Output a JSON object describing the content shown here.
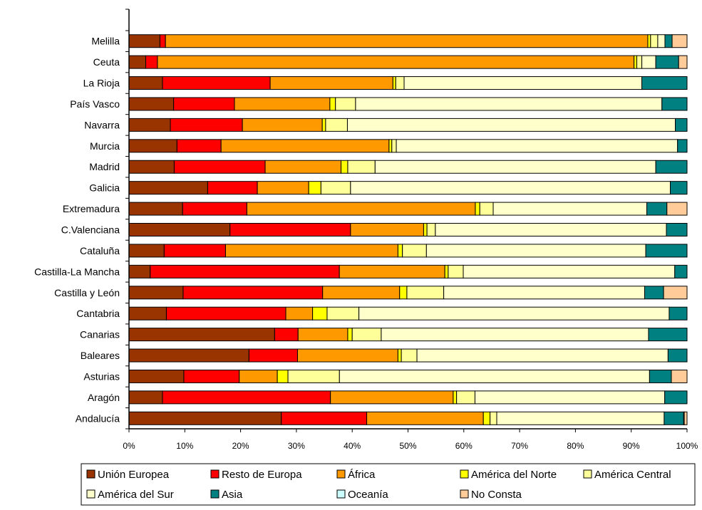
{
  "chart_data": {
    "type": "bar",
    "orientation": "horizontal",
    "stacked": "percent",
    "title": "",
    "xlabel": "",
    "ylabel": "",
    "xlim": [
      0,
      100
    ],
    "grid": false,
    "legend_position": "bottom",
    "x_ticks": [
      "0%",
      "10%",
      "20%",
      "30%",
      "40%",
      "50%",
      "60%",
      "70%",
      "80%",
      "90%",
      "100%"
    ],
    "categories": [
      "Melilla",
      "Ceuta",
      "La Rioja",
      "País Vasco",
      "Navarra",
      "Murcia",
      "Madrid",
      "Galicia",
      "Extremadura",
      "C.Valenciana",
      "Cataluña",
      "Castilla-La Mancha",
      "Castilla y León",
      "Cantabria",
      "Canarias",
      "Baleares",
      "Asturias",
      "Aragón",
      "Andalucía"
    ],
    "series": [
      {
        "name": "Unión Europea",
        "color": "#993300",
        "values": [
          5.6,
          3.0,
          6.0,
          8.0,
          7.4,
          8.6,
          8.1,
          14.1,
          9.6,
          18.1,
          6.3,
          3.8,
          9.7,
          6.7,
          26.1,
          21.5,
          9.8,
          6.0,
          27.3
        ]
      },
      {
        "name": "Resto de Europa",
        "color": "#ff0000",
        "values": [
          1.0,
          2.1,
          19.3,
          10.9,
          12.9,
          7.9,
          16.3,
          8.9,
          11.5,
          21.6,
          11.0,
          33.9,
          25.0,
          21.4,
          4.2,
          8.7,
          9.9,
          30.1,
          15.3
        ]
      },
      {
        "name": "África",
        "color": "#ff9900",
        "values": [
          87.3,
          85.4,
          22.0,
          17.1,
          14.3,
          30.1,
          13.6,
          9.2,
          40.9,
          13.1,
          30.9,
          18.9,
          13.8,
          4.8,
          8.9,
          18.0,
          6.8,
          22.0,
          20.9
        ]
      },
      {
        "name": "América del Norte",
        "color": "#ffff00",
        "values": [
          0.5,
          0.5,
          0.5,
          1.0,
          0.6,
          0.5,
          1.2,
          2.2,
          0.8,
          0.6,
          0.8,
          0.6,
          1.3,
          2.6,
          0.8,
          0.6,
          1.9,
          0.6,
          1.2
        ]
      },
      {
        "name": "América Central",
        "color": "#ffff99",
        "values": [
          1.3,
          0.9,
          1.5,
          3.6,
          3.9,
          0.8,
          4.9,
          5.3,
          2.4,
          1.5,
          4.3,
          2.7,
          6.6,
          5.7,
          5.2,
          2.8,
          9.2,
          3.3,
          1.2
        ]
      },
      {
        "name": "América del Sur",
        "color": "#ffffcc",
        "values": [
          1.3,
          2.5,
          42.6,
          54.9,
          58.7,
          50.4,
          50.3,
          57.3,
          27.5,
          41.4,
          39.3,
          37.9,
          36.0,
          55.6,
          47.9,
          45.0,
          55.4,
          34.0,
          30.0
        ]
      },
      {
        "name": "Asia",
        "color": "#008080",
        "values": [
          1.3,
          4.1,
          8.1,
          4.5,
          2.1,
          1.7,
          5.6,
          3.0,
          3.6,
          3.7,
          7.4,
          2.2,
          3.4,
          3.2,
          6.9,
          3.4,
          3.9,
          4.0,
          3.5
        ]
      },
      {
        "name": "Oceanía",
        "color": "#ccffff",
        "values": [
          0,
          0,
          0,
          0,
          0,
          0,
          0,
          0,
          0,
          0,
          0,
          0,
          0,
          0,
          0,
          0,
          0,
          0,
          0.1
        ]
      },
      {
        "name": "No Consta",
        "color": "#ffcc99",
        "values": [
          2.7,
          1.5,
          0,
          0,
          0,
          0,
          0,
          0,
          3.6,
          0,
          0,
          0,
          4.2,
          0,
          0,
          0,
          2.8,
          0,
          0.5
        ]
      }
    ]
  }
}
